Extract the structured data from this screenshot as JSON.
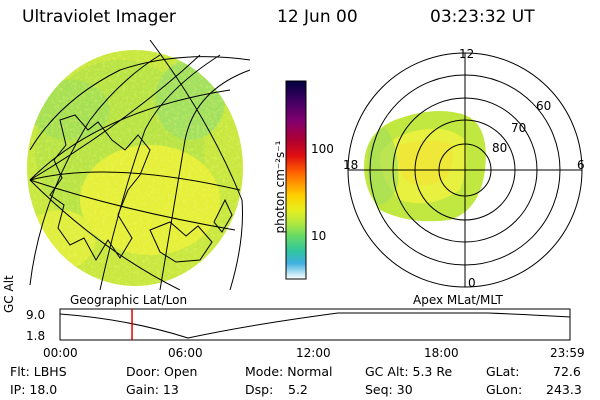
{
  "header": {
    "instrument": "Ultraviolet Imager",
    "date": "12 Jun 00",
    "time": "03:23:32 UT"
  },
  "colorbar": {
    "label": "photon cm⁻²s⁻¹",
    "ticks": [
      "100",
      "10"
    ],
    "colors": [
      "#000040",
      "#400060",
      "#800070",
      "#b00030",
      "#e01010",
      "#ff6000",
      "#ff9a00",
      "#ffd000",
      "#e6ef20",
      "#b0e840",
      "#60d86a",
      "#30c4a0",
      "#40b0e0",
      "#90d0f0",
      "#ffffff"
    ]
  },
  "geo_map": {
    "caption": "Geographic Lat/Lon"
  },
  "polar_plot": {
    "caption": "Apex MLat/MLT",
    "lat_labels": [
      "60",
      "70",
      "80"
    ],
    "mlt_labels": [
      "12",
      "18",
      "6",
      "0"
    ]
  },
  "timeline": {
    "ylabel": "GC Alt",
    "y_ticks": [
      "9.0",
      "1.8"
    ],
    "x_ticks": [
      "00:00",
      "06:00",
      "12:00",
      "18:00",
      "23:59"
    ],
    "marker_hour": 3.39
  },
  "info": {
    "filter": "Flt: LBHS",
    "ip": "IP: 18.0",
    "door": "Door: Open",
    "gain": "Gain: 13",
    "mode": "Mode: Normal",
    "dsp_label": "Dsp:",
    "dsp_value": "5.2",
    "gc_alt": "GC Alt: 5.3 Re",
    "seq": "Seq: 30",
    "glat_label": "GLat:",
    "glat_value": "72.6",
    "glon_label": "GLon:",
    "glon_value": "243.3"
  }
}
